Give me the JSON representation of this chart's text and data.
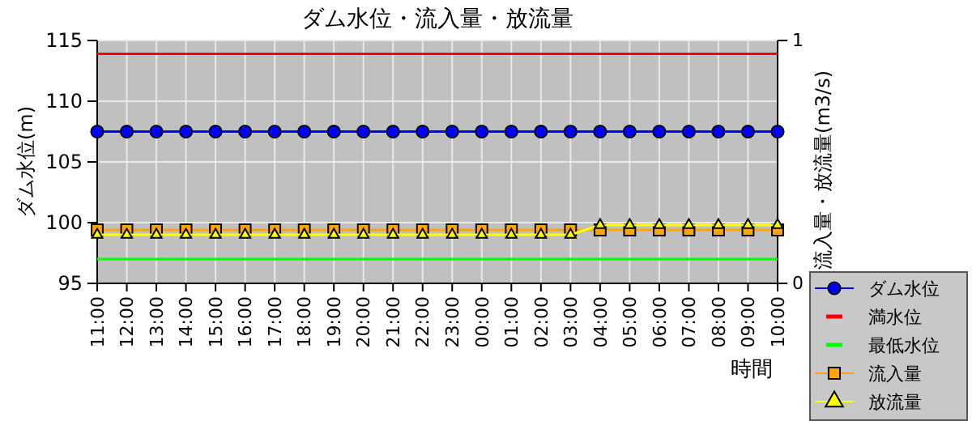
{
  "chart_data": {
    "type": "line",
    "title": "ダム水位・流入量・放流量",
    "xlabel": "時間",
    "ylabel": "ダム水位(m)",
    "y2label": "流入量・放流量(m3/s)",
    "categories": [
      "11:00",
      "12:00",
      "13:00",
      "14:00",
      "15:00",
      "16:00",
      "17:00",
      "18:00",
      "19:00",
      "20:00",
      "21:00",
      "22:00",
      "23:00",
      "00:00",
      "01:00",
      "02:00",
      "03:00",
      "04:00",
      "05:00",
      "06:00",
      "07:00",
      "08:00",
      "09:00",
      "10:00"
    ],
    "ylim": [
      95,
      115
    ],
    "yticks": [
      95,
      100,
      105,
      110,
      115
    ],
    "y2lim": [
      0,
      1
    ],
    "y2ticks": [
      0,
      1
    ],
    "grid": true,
    "legend": "right",
    "series": [
      {
        "name": "ダム水位",
        "color": "#0000ff",
        "marker": "circle",
        "values": [
          107.5,
          107.5,
          107.5,
          107.5,
          107.5,
          107.5,
          107.5,
          107.5,
          107.5,
          107.5,
          107.5,
          107.5,
          107.5,
          107.5,
          107.5,
          107.5,
          107.5,
          107.5,
          107.5,
          107.5,
          107.5,
          107.5,
          107.5,
          107.5
        ]
      },
      {
        "name": "満水位",
        "color": "#ff0000",
        "marker": "none",
        "values": [
          113.9,
          113.9,
          113.9,
          113.9,
          113.9,
          113.9,
          113.9,
          113.9,
          113.9,
          113.9,
          113.9,
          113.9,
          113.9,
          113.9,
          113.9,
          113.9,
          113.9,
          113.9,
          113.9,
          113.9,
          113.9,
          113.9,
          113.9,
          113.9
        ]
      },
      {
        "name": "最低水位",
        "color": "#00ff00",
        "marker": "none",
        "values": [
          97.0,
          97.0,
          97.0,
          97.0,
          97.0,
          97.0,
          97.0,
          97.0,
          97.0,
          97.0,
          97.0,
          97.0,
          97.0,
          97.0,
          97.0,
          97.0,
          97.0,
          97.0,
          97.0,
          97.0,
          97.0,
          97.0,
          97.0,
          97.0
        ]
      },
      {
        "name": "流入量",
        "color": "#ffa500",
        "marker": "square",
        "axis": "y2",
        "values": [
          0.22,
          0.22,
          0.22,
          0.22,
          0.22,
          0.22,
          0.22,
          0.22,
          0.22,
          0.22,
          0.22,
          0.22,
          0.22,
          0.22,
          0.22,
          0.22,
          0.22,
          0.22,
          0.22,
          0.22,
          0.22,
          0.22,
          0.22,
          0.22
        ]
      },
      {
        "name": "放流量",
        "color": "#ffff00",
        "marker": "triangle",
        "axis": "y2",
        "values": [
          0.2,
          0.2,
          0.2,
          0.2,
          0.2,
          0.2,
          0.2,
          0.2,
          0.2,
          0.2,
          0.2,
          0.2,
          0.2,
          0.2,
          0.2,
          0.2,
          0.2,
          0.24,
          0.24,
          0.24,
          0.24,
          0.24,
          0.24,
          0.24
        ]
      }
    ]
  }
}
